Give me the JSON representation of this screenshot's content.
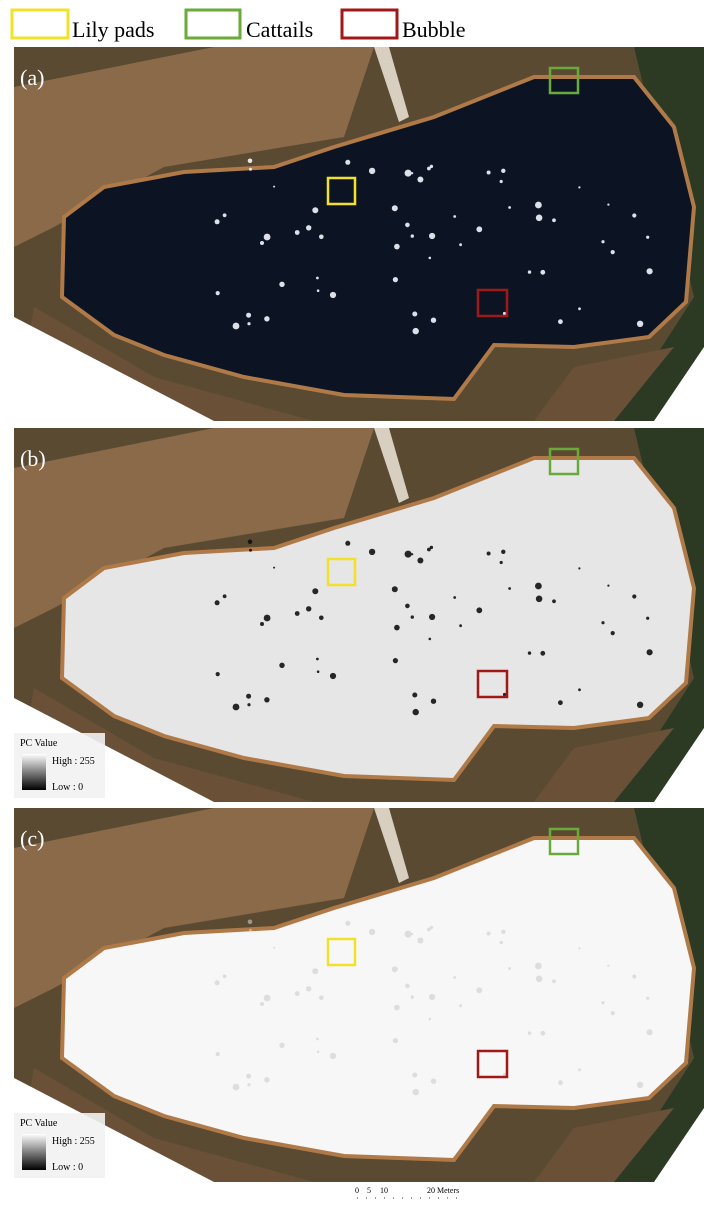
{
  "legend": {
    "items": [
      "Lily pads",
      "Cattails",
      "Bubble"
    ]
  },
  "panels": [
    {
      "label": "(a)"
    },
    {
      "label": "(b)",
      "pc_legend": {
        "title": "PC Value",
        "high": "High : 255",
        "low": "Low : 0"
      }
    },
    {
      "label": "(c)",
      "pc_legend": {
        "title": "PC Value",
        "high": "High : 255",
        "low": "Low : 0"
      }
    }
  ],
  "scale_bar": {
    "labels": [
      "0",
      "5",
      "10",
      "20 Meters"
    ]
  }
}
